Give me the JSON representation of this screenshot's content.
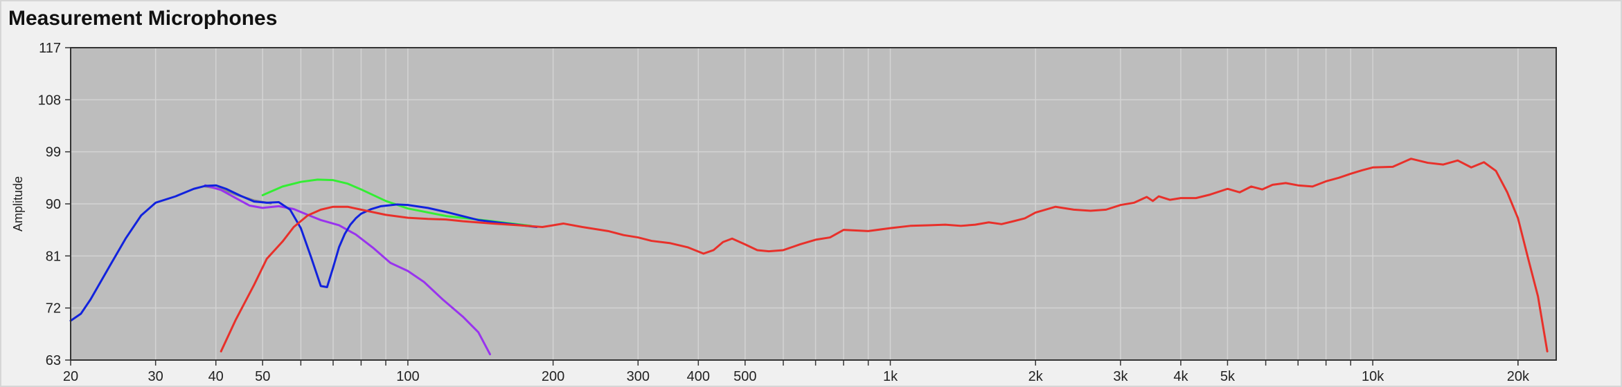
{
  "page": {
    "title": "Measurement Microphones"
  },
  "chart_data": {
    "type": "line",
    "title": "Measurement Microphones",
    "xlabel": "",
    "ylabel": "Amplitude",
    "x_scale": "log",
    "xlim": [
      20,
      24000
    ],
    "ylim": [
      63,
      117
    ],
    "grid": true,
    "legend": "none",
    "plot_background": "#bdbdbd",
    "yticks": [
      63,
      72,
      81,
      90,
      99,
      108,
      117
    ],
    "xticks": [
      {
        "value": 20,
        "label": "20"
      },
      {
        "value": 30,
        "label": "30"
      },
      {
        "value": 40,
        "label": "40"
      },
      {
        "value": 50,
        "label": "50"
      },
      {
        "value": 100,
        "label": "100"
      },
      {
        "value": 200,
        "label": "200"
      },
      {
        "value": 300,
        "label": "300"
      },
      {
        "value": 400,
        "label": "400"
      },
      {
        "value": 500,
        "label": "500"
      },
      {
        "value": 1000,
        "label": "1k"
      },
      {
        "value": 2000,
        "label": "2k"
      },
      {
        "value": 3000,
        "label": "3k"
      },
      {
        "value": 4000,
        "label": "4k"
      },
      {
        "value": 5000,
        "label": "5k"
      },
      {
        "value": 10000,
        "label": "10k"
      },
      {
        "value": 20000,
        "label": "20k"
      }
    ],
    "series": [
      {
        "color": "#33ee33",
        "x": [
          50,
          55,
          60,
          65,
          70,
          75,
          80,
          90,
          100,
          120,
          150,
          180
        ],
        "y": [
          91.5,
          93.0,
          93.8,
          94.2,
          94.1,
          93.5,
          92.5,
          90.5,
          89.2,
          87.9,
          87.0,
          86.2
        ]
      },
      {
        "color": "#888888",
        "x": [
          38,
          41,
          44,
          48,
          52
        ],
        "y": [
          93.0,
          92.6,
          91.6,
          90.6,
          90.1
        ]
      },
      {
        "color": "#9933ee",
        "x": [
          38,
          41,
          44,
          47,
          50,
          54,
          58,
          62,
          66,
          72,
          78,
          85,
          92,
          100,
          108,
          118,
          130,
          140,
          148
        ],
        "y": [
          93.2,
          92.4,
          91.0,
          89.7,
          89.3,
          89.6,
          89.1,
          88.1,
          87.2,
          86.3,
          84.7,
          82.3,
          79.8,
          78.4,
          76.5,
          73.5,
          70.5,
          67.8,
          64.0
        ]
      },
      {
        "color": "#1122dd",
        "x": [
          20,
          21,
          22,
          24,
          26,
          28,
          30,
          33,
          36,
          38,
          40,
          42,
          45,
          48,
          51,
          54,
          57,
          60,
          63,
          66,
          68,
          70,
          72,
          74,
          76,
          78,
          80,
          84,
          88,
          95,
          100,
          110,
          120,
          140,
          160,
          185
        ],
        "y": [
          69.8,
          71.0,
          73.5,
          79.0,
          84.0,
          88.0,
          90.2,
          91.3,
          92.6,
          93.1,
          93.2,
          92.6,
          91.4,
          90.4,
          90.2,
          90.3,
          89.0,
          85.8,
          80.8,
          75.8,
          75.6,
          79.0,
          82.5,
          84.8,
          86.4,
          87.5,
          88.3,
          89.1,
          89.6,
          89.9,
          89.8,
          89.3,
          88.6,
          87.2,
          86.6,
          86.0
        ]
      },
      {
        "color": "#e8302a",
        "x": [
          41,
          44,
          48,
          51,
          55,
          58,
          62,
          66,
          70,
          75,
          80,
          90,
          100,
          110,
          120,
          130,
          150,
          170,
          190,
          200,
          210,
          230,
          260,
          280,
          300,
          320,
          350,
          380,
          410,
          430,
          450,
          470,
          500,
          530,
          560,
          600,
          650,
          700,
          750,
          800,
          900,
          1000,
          1100,
          1200,
          1300,
          1400,
          1500,
          1600,
          1700,
          1800,
          1900,
          2000,
          2200,
          2400,
          2600,
          2800,
          3000,
          3200,
          3400,
          3500,
          3600,
          3800,
          4000,
          4300,
          4600,
          5000,
          5300,
          5600,
          5900,
          6200,
          6600,
          7000,
          7500,
          8000,
          8500,
          9000,
          9500,
          10000,
          11000,
          12000,
          13000,
          14000,
          15000,
          16000,
          17000,
          18000,
          19000,
          20000,
          21000,
          22000,
          23000
        ],
        "y": [
          64.5,
          70.0,
          76.0,
          80.5,
          83.5,
          86.0,
          88.0,
          89.0,
          89.5,
          89.5,
          89.0,
          88.1,
          87.6,
          87.4,
          87.3,
          87.0,
          86.6,
          86.3,
          86.0,
          86.3,
          86.6,
          86.0,
          85.3,
          84.6,
          84.2,
          83.6,
          83.2,
          82.5,
          81.4,
          82.0,
          83.4,
          84.0,
          83.0,
          82.0,
          81.8,
          82.0,
          83.0,
          83.8,
          84.2,
          85.5,
          85.3,
          85.8,
          86.2,
          86.3,
          86.4,
          86.2,
          86.4,
          86.8,
          86.5,
          87.0,
          87.5,
          88.5,
          89.5,
          89.0,
          88.8,
          89.0,
          89.8,
          90.2,
          91.2,
          90.5,
          91.3,
          90.7,
          91.0,
          91.0,
          91.6,
          92.6,
          92.0,
          93.0,
          92.5,
          93.3,
          93.6,
          93.2,
          93.0,
          93.9,
          94.5,
          95.2,
          95.8,
          96.3,
          96.4,
          97.8,
          97.1,
          96.8,
          97.5,
          96.3,
          97.2,
          95.7,
          92.0,
          87.5,
          80.5,
          74.0,
          64.5
        ]
      }
    ]
  }
}
